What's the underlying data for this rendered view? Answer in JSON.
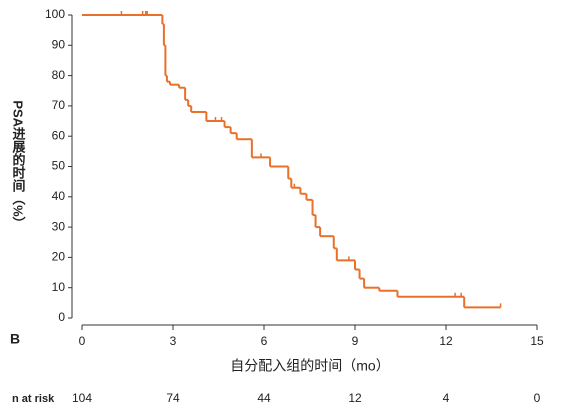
{
  "chart_data": {
    "type": "step",
    "panel_label": "B",
    "xlabel": "自分配入组的时间（mo）",
    "ylabel": "PSA进展的时间（%）",
    "color": "#e8702a",
    "x": [
      0,
      2.65,
      2.7,
      2.75,
      2.8,
      2.9,
      3.2,
      3.4,
      3.5,
      3.6,
      4.1,
      4.7,
      4.9,
      5.1,
      5.6,
      6.2,
      6.8,
      6.9,
      7.2,
      7.4,
      7.6,
      7.7,
      7.85,
      8.3,
      8.4,
      9.0,
      9.15,
      9.3,
      9.8,
      10.4,
      12.6,
      13.8
    ],
    "y": [
      100,
      97,
      90,
      80,
      78,
      77,
      76,
      72,
      70,
      68,
      65,
      63,
      61,
      59,
      53,
      50,
      46,
      43,
      41,
      39,
      34,
      30,
      27,
      23,
      19,
      16,
      13,
      10,
      9,
      7,
      3.5,
      3.5
    ],
    "censored_x": [
      1.3,
      2.0,
      2.1,
      2.15,
      4.4,
      4.6,
      5.9,
      7.0,
      8.8,
      12.3,
      12.5,
      13.8
    ],
    "censored_y": [
      100,
      100,
      100,
      100,
      65,
      65,
      53,
      43,
      19,
      7,
      7,
      3.5
    ],
    "xlim": [
      0,
      15
    ],
    "xticks": [
      0,
      3,
      6,
      9,
      12,
      15
    ],
    "ylim": [
      0,
      100
    ],
    "yticks": [
      0,
      10,
      20,
      30,
      40,
      50,
      60,
      70,
      80,
      90,
      100
    ],
    "risk_label": "n at risk",
    "at_risk": [
      104,
      74,
      44,
      12,
      4,
      0
    ]
  }
}
